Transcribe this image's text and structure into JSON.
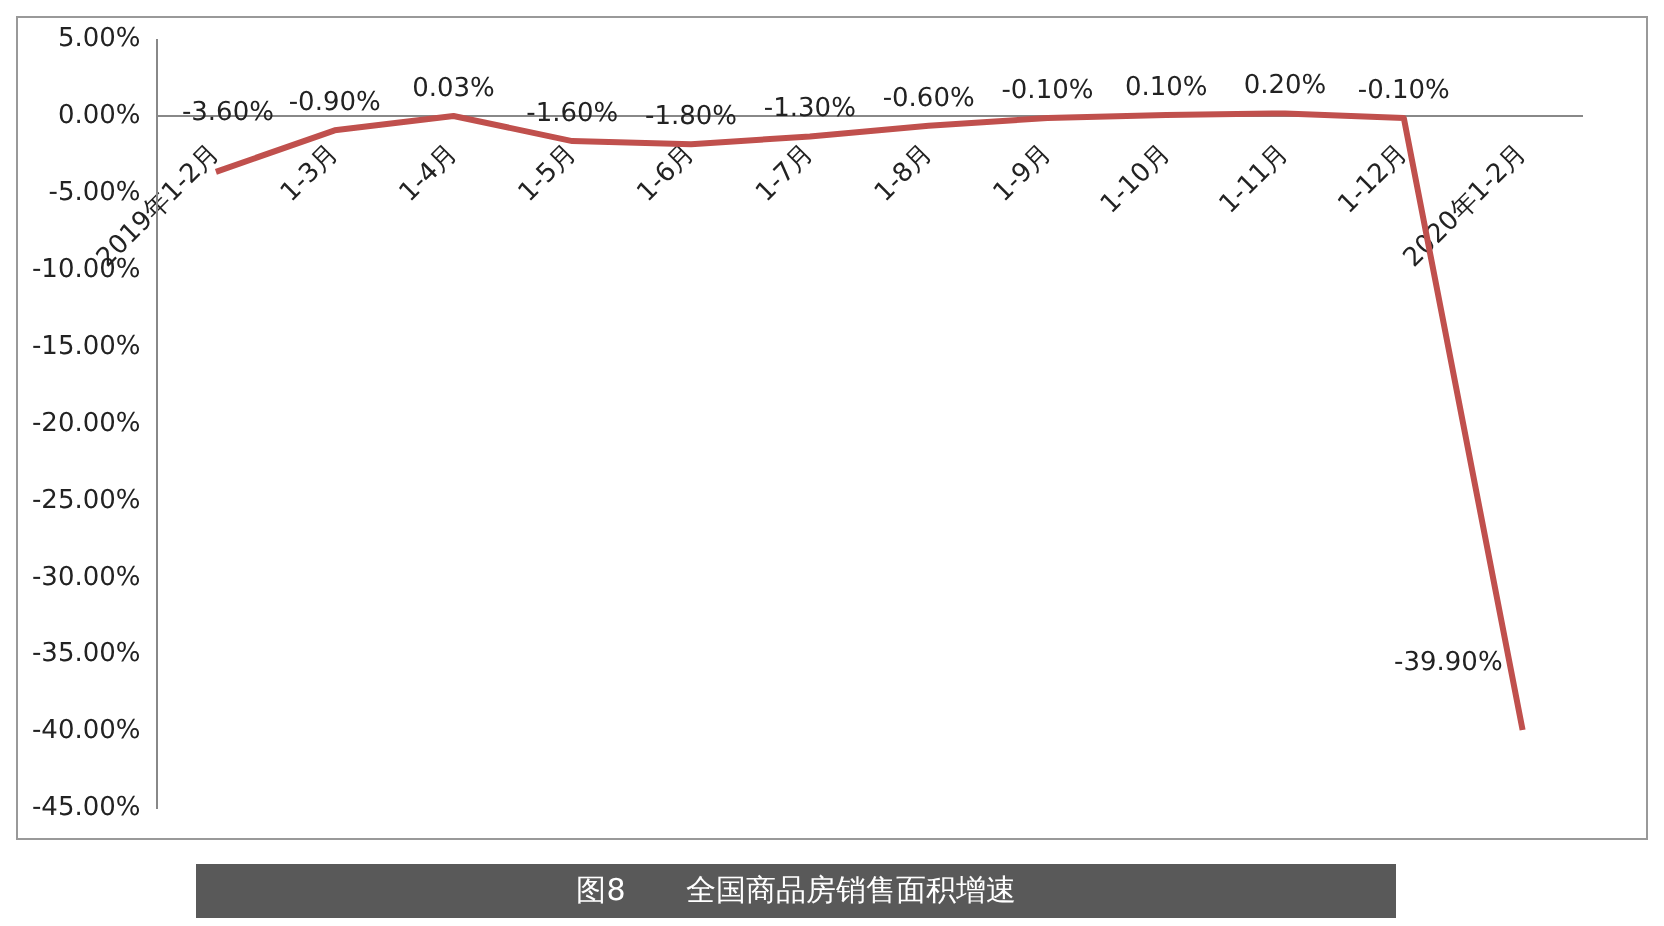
{
  "chart_data": {
    "type": "line",
    "title": "图8　　全国商品房销售面积增速",
    "categories": [
      "2019年1-2月",
      "1-3月",
      "1-4月",
      "1-5月",
      "1-6月",
      "1-7月",
      "1-8月",
      "1-9月",
      "1-10月",
      "1-11月",
      "1-12月",
      "2020年1-2月"
    ],
    "series": [
      {
        "color": "#c0504d",
        "values": [
          -3.6,
          -0.9,
          0.03,
          -1.6,
          -1.8,
          -1.3,
          -0.6,
          -0.1,
          0.1,
          0.2,
          -0.1,
          -39.9
        ],
        "value_labels": [
          "-3.60%",
          "-0.90%",
          "0.03%",
          "-1.60%",
          "-1.80%",
          "-1.30%",
          "-0.60%",
          "-0.10%",
          "0.10%",
          "0.20%",
          "-0.10%",
          "-39.90%"
        ]
      }
    ],
    "ylim": [
      -45,
      5
    ],
    "yticks": [
      {
        "value": 5,
        "label": "5.00%"
      },
      {
        "value": 0,
        "label": "0.00%"
      },
      {
        "value": -5,
        "label": "-5.00%"
      },
      {
        "value": -10,
        "label": "-10.00%"
      },
      {
        "value": -15,
        "label": "-15.00%"
      },
      {
        "value": -20,
        "label": "-20.00%"
      },
      {
        "value": -25,
        "label": "-25.00%"
      },
      {
        "value": -30,
        "label": "-30.00%"
      },
      {
        "value": -35,
        "label": "-35.00%"
      },
      {
        "value": -40,
        "label": "-40.00%"
      },
      {
        "value": -45,
        "label": "-45.00%"
      }
    ],
    "grid": false,
    "legend": false,
    "marker": "none",
    "line_style": "solid"
  }
}
